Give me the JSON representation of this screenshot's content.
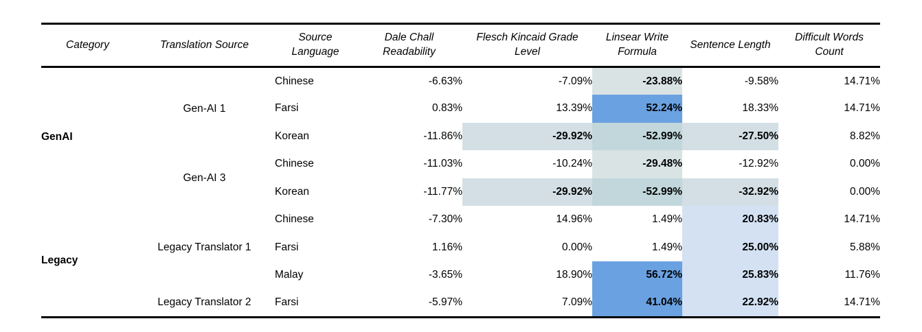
{
  "colors": {
    "border": "#000000",
    "text": "#000000",
    "highlight_blue": "#6aa1e1",
    "highlight_light_blue": "#d3e1f3",
    "highlight_teal": "#d9e3e4",
    "highlight_band": "#d3dfe5",
    "highlight_overlap": "#c1d7db"
  },
  "table": {
    "columns": [
      "Category",
      "Translation Source",
      "Source Language",
      "Dale Chall Readability",
      "Flesch Kincaid Grade Level",
      "Linsear Write Formula",
      "Sentence Length",
      "Difficult Words Count"
    ],
    "rows": [
      {
        "category": {
          "label": "GenAI",
          "span": 5
        },
        "source": {
          "label": "Gen-AI 1",
          "span": 3
        },
        "language": "Chinese",
        "metrics": [
          {
            "value": "-6.63%"
          },
          {
            "value": "-7.09%"
          },
          {
            "value": "-23.88%",
            "highlight": "teal"
          },
          {
            "value": "-9.58%"
          },
          {
            "value": "14.71%"
          }
        ]
      },
      {
        "language": "Farsi",
        "metrics": [
          {
            "value": "0.83%"
          },
          {
            "value": "13.39%"
          },
          {
            "value": "52.24%",
            "highlight": "blue"
          },
          {
            "value": "18.33%"
          },
          {
            "value": "14.71%"
          }
        ]
      },
      {
        "language": "Korean",
        "metrics": [
          {
            "value": "-11.86%"
          },
          {
            "value": "-29.92%",
            "highlight": "band"
          },
          {
            "value": "-52.99%",
            "highlight": "overlap"
          },
          {
            "value": "-27.50%",
            "highlight": "band"
          },
          {
            "value": "8.82%"
          }
        ]
      },
      {
        "source": {
          "label": "Gen-AI 3",
          "span": 2
        },
        "language": "Chinese",
        "metrics": [
          {
            "value": "-11.03%"
          },
          {
            "value": "-10.24%"
          },
          {
            "value": "-29.48%",
            "highlight": "teal"
          },
          {
            "value": "-12.92%"
          },
          {
            "value": "0.00%"
          }
        ]
      },
      {
        "language": "Korean",
        "metrics": [
          {
            "value": "-11.77%"
          },
          {
            "value": "-29.92%",
            "highlight": "band"
          },
          {
            "value": "-52.99%",
            "highlight": "overlap"
          },
          {
            "value": "-32.92%",
            "highlight": "band"
          },
          {
            "value": "0.00%"
          }
        ]
      },
      {
        "category": {
          "label": "Legacy",
          "span": 4
        },
        "source": {
          "label": "Legacy Translator 1",
          "span": 3
        },
        "language": "Chinese",
        "metrics": [
          {
            "value": "-7.30%"
          },
          {
            "value": "14.96%"
          },
          {
            "value": "1.49%"
          },
          {
            "value": "20.83%",
            "highlight": "lightblue"
          },
          {
            "value": "14.71%"
          }
        ]
      },
      {
        "language": "Farsi",
        "metrics": [
          {
            "value": "1.16%"
          },
          {
            "value": "0.00%"
          },
          {
            "value": "1.49%"
          },
          {
            "value": "25.00%",
            "highlight": "lightblue"
          },
          {
            "value": "5.88%"
          }
        ]
      },
      {
        "language": "Malay",
        "metrics": [
          {
            "value": "-3.65%"
          },
          {
            "value": "18.90%"
          },
          {
            "value": "56.72%",
            "highlight": "blue"
          },
          {
            "value": "25.83%",
            "highlight": "lightblue"
          },
          {
            "value": "11.76%"
          }
        ]
      },
      {
        "source": {
          "label": "Legacy Translator 2",
          "span": 1
        },
        "language": "Farsi",
        "metrics": [
          {
            "value": "-5.97%"
          },
          {
            "value": "7.09%"
          },
          {
            "value": "41.04%",
            "highlight": "blue"
          },
          {
            "value": "22.92%",
            "highlight": "lightblue"
          },
          {
            "value": "14.71%"
          }
        ]
      }
    ]
  }
}
